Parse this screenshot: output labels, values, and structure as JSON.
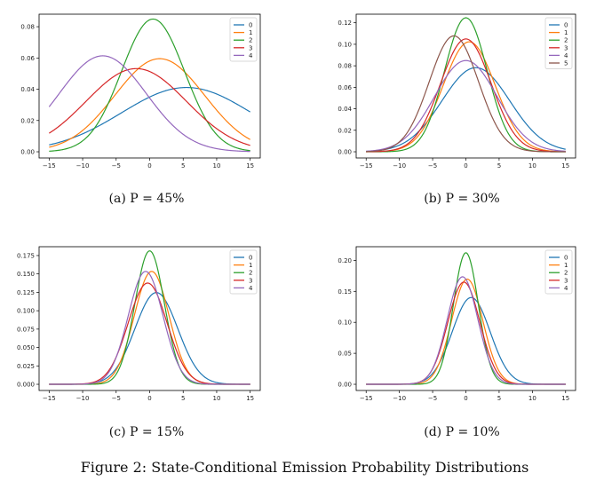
{
  "figure_caption": "Figure 2: State-Conditional Emission Probability Distributions",
  "chart_data": [
    {
      "type": "line",
      "caption": "(a) P = 45%",
      "xlim": [
        -15,
        15
      ],
      "ylim": [
        0,
        0.088
      ],
      "xticks": [
        -15,
        -10,
        -5,
        0,
        5,
        10,
        15
      ],
      "yticks": [
        0.0,
        0.02,
        0.04,
        0.06,
        0.08
      ],
      "ytick_labels": [
        "0.00",
        "0.02",
        "0.04",
        "0.06",
        "0.08"
      ],
      "legend_position": "top-right",
      "series": [
        {
          "name": "0",
          "color": "#1f77b4",
          "mean": 5.5,
          "std": 9.7
        },
        {
          "name": "1",
          "color": "#ff7f0e",
          "mean": 1.5,
          "std": 6.7
        },
        {
          "name": "2",
          "color": "#2ca02c",
          "mean": 0.5,
          "std": 4.7
        },
        {
          "name": "3",
          "color": "#d62728",
          "mean": -2.0,
          "std": 7.5
        },
        {
          "name": "4",
          "color": "#9467bd",
          "mean": -7.0,
          "std": 6.5
        }
      ]
    },
    {
      "type": "line",
      "caption": "(b) P = 30%",
      "xlim": [
        -15,
        15
      ],
      "ylim": [
        0,
        0.128
      ],
      "xticks": [
        -15,
        -10,
        -5,
        0,
        5,
        10,
        15
      ],
      "yticks": [
        0.0,
        0.02,
        0.04,
        0.06,
        0.08,
        0.1,
        0.12
      ],
      "ytick_labels": [
        "0.00",
        "0.02",
        "0.04",
        "0.06",
        "0.08",
        "0.10",
        "0.12"
      ],
      "legend_position": "top-right",
      "series": [
        {
          "name": "0",
          "color": "#1f77b4",
          "mean": 1.5,
          "std": 5.1
        },
        {
          "name": "1",
          "color": "#ff7f0e",
          "mean": 0.5,
          "std": 3.9
        },
        {
          "name": "2",
          "color": "#2ca02c",
          "mean": 0.0,
          "std": 3.2
        },
        {
          "name": "3",
          "color": "#d62728",
          "mean": 0.0,
          "std": 3.8
        },
        {
          "name": "4",
          "color": "#9467bd",
          "mean": 0.0,
          "std": 4.7
        },
        {
          "name": "5",
          "color": "#8c564b",
          "mean": -1.8,
          "std": 3.7
        }
      ]
    },
    {
      "type": "line",
      "caption": "(c) P = 15%",
      "xlim": [
        -15,
        15
      ],
      "ylim": [
        0,
        0.187
      ],
      "xticks": [
        -15,
        -10,
        -5,
        0,
        5,
        10,
        15
      ],
      "yticks": [
        0.0,
        0.025,
        0.05,
        0.075,
        0.1,
        0.125,
        0.15,
        0.175
      ],
      "ytick_labels": [
        "0.000",
        "0.025",
        "0.050",
        "0.075",
        "0.100",
        "0.125",
        "0.150",
        "0.175"
      ],
      "legend_position": "top-right",
      "series": [
        {
          "name": "0",
          "color": "#1f77b4",
          "mean": 1.0,
          "std": 3.2
        },
        {
          "name": "1",
          "color": "#ff7f0e",
          "mean": 0.3,
          "std": 2.6
        },
        {
          "name": "2",
          "color": "#2ca02c",
          "mean": 0.0,
          "std": 2.2
        },
        {
          "name": "3",
          "color": "#d62728",
          "mean": -0.3,
          "std": 2.9
        },
        {
          "name": "4",
          "color": "#9467bd",
          "mean": -0.6,
          "std": 2.6
        }
      ]
    },
    {
      "type": "line",
      "caption": "(d) P = 10%",
      "xlim": [
        -15,
        15
      ],
      "ylim": [
        0,
        0.222
      ],
      "xticks": [
        -15,
        -10,
        -5,
        0,
        5,
        10,
        15
      ],
      "yticks": [
        0.0,
        0.05,
        0.1,
        0.15,
        0.2
      ],
      "ytick_labels": [
        "0.00",
        "0.05",
        "0.10",
        "0.15",
        "0.20"
      ],
      "legend_position": "top-right",
      "series": [
        {
          "name": "0",
          "color": "#1f77b4",
          "mean": 0.8,
          "std": 2.85
        },
        {
          "name": "1",
          "color": "#ff7f0e",
          "mean": 0.2,
          "std": 2.35
        },
        {
          "name": "2",
          "color": "#2ca02c",
          "mean": 0.0,
          "std": 1.88
        },
        {
          "name": "3",
          "color": "#d62728",
          "mean": -0.3,
          "std": 2.42
        },
        {
          "name": "4",
          "color": "#9467bd",
          "mean": -0.5,
          "std": 2.3
        }
      ]
    }
  ]
}
